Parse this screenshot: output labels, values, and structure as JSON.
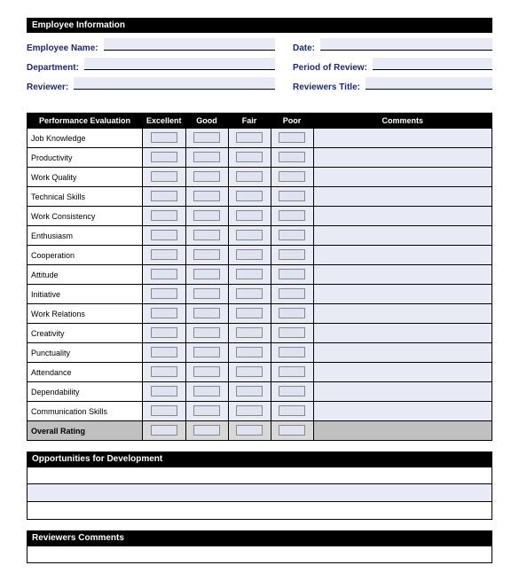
{
  "sections": {
    "employee_info": "Employee Information",
    "perf_eval": "Performance Evaluation",
    "opportunities": "Opportunities for Development",
    "reviewers_comments": "Reviewers Comments"
  },
  "info_fields": {
    "employee_name": "Employee Name:",
    "date": "Date:",
    "department": "Department:",
    "period": "Period of Review:",
    "reviewer": "Reviewer:",
    "reviewer_title": "Reviewers Title:"
  },
  "eval_headers": {
    "criteria": "Performance Evaluation",
    "excellent": "Excellent",
    "good": "Good",
    "fair": "Fair",
    "poor": "Poor",
    "comments": "Comments"
  },
  "criteria": [
    "Job Knowledge",
    "Productivity",
    "Work Quality",
    "Technical Skills",
    "Work Consistency",
    "Enthusiasm",
    "Cooperation",
    "Attitude",
    "Initiative",
    "Work Relations",
    "Creativity",
    "Punctuality",
    "Attendance",
    "Dependability",
    "Communication Skills"
  ],
  "overall": "Overall Rating",
  "colors": {
    "header_bg": "#000000",
    "header_text": "#ffffff",
    "field_bg": "#e8ebf5",
    "label_color": "#1a2a6c",
    "overall_bg": "#c0c0c0"
  }
}
